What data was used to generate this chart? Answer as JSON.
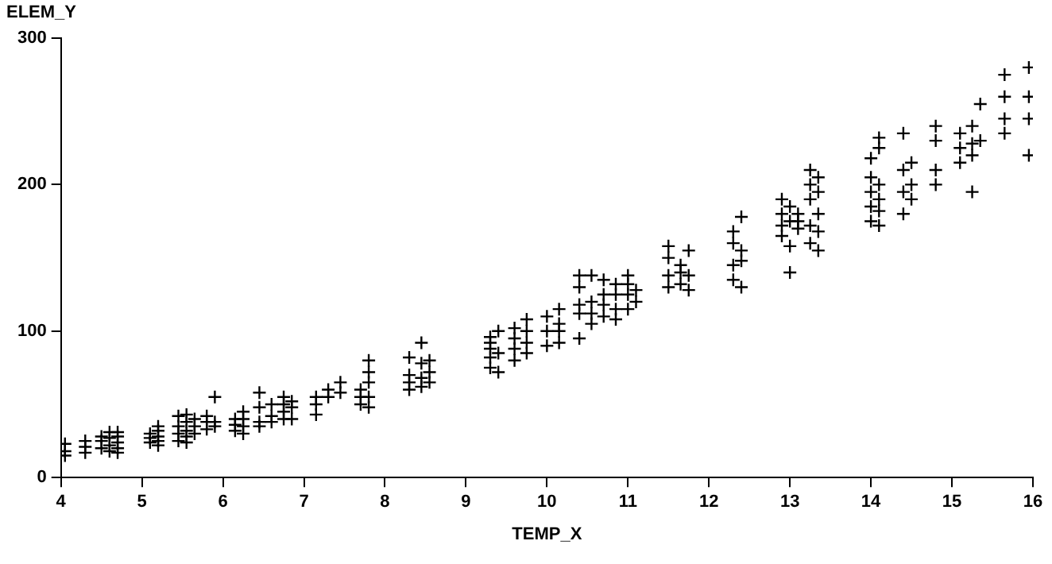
{
  "chart_data": {
    "type": "scatter",
    "xlabel": "TEMP_X",
    "ylabel": "ELEM_Y",
    "marker": "cross",
    "grid": false,
    "legend": false,
    "xlim": [
      4,
      16
    ],
    "xticks": [
      4,
      5,
      6,
      7,
      8,
      9,
      10,
      11,
      12,
      13,
      14,
      15,
      16
    ],
    "ylim": [
      0,
      300
    ],
    "yticks": [
      0,
      100,
      200,
      300
    ],
    "series": [
      {
        "color": "#000000",
        "x": [
          4.05,
          4.05,
          4.05,
          4.3,
          4.3,
          4.3,
          4.5,
          4.5,
          4.5,
          4.6,
          4.6,
          4.6,
          4.6,
          4.7,
          4.7,
          4.7,
          4.7,
          4.7,
          5.1,
          5.1,
          5.1,
          5.2,
          5.2,
          5.2,
          5.2,
          5.2,
          5.45,
          5.45,
          5.45,
          5.45,
          5.55,
          5.55,
          5.55,
          5.55,
          5.55,
          5.65,
          5.65,
          5.65,
          5.8,
          5.8,
          5.8,
          5.9,
          5.9,
          5.9,
          6.15,
          6.15,
          6.15,
          6.25,
          6.25,
          6.25,
          6.25,
          6.45,
          6.45,
          6.45,
          6.45,
          6.6,
          6.6,
          6.6,
          6.75,
          6.75,
          6.75,
          6.75,
          6.85,
          6.85,
          6.85,
          7.15,
          7.15,
          7.15,
          7.3,
          7.3,
          7.45,
          7.45,
          7.7,
          7.7,
          7.7,
          7.8,
          7.8,
          7.8,
          7.8,
          7.8,
          8.3,
          8.3,
          8.3,
          8.3,
          8.45,
          8.45,
          8.45,
          8.45,
          8.55,
          8.55,
          8.55,
          9.3,
          9.3,
          9.3,
          9.3,
          9.3,
          9.4,
          9.4,
          9.4,
          9.6,
          9.6,
          9.6,
          9.6,
          9.75,
          9.75,
          9.75,
          9.75,
          10.0,
          10.0,
          10.0,
          10.15,
          10.15,
          10.15,
          10.15,
          10.4,
          10.4,
          10.4,
          10.4,
          10.4,
          10.55,
          10.55,
          10.55,
          10.55,
          10.7,
          10.7,
          10.7,
          10.7,
          10.85,
          10.85,
          10.85,
          10.85,
          11.0,
          11.0,
          11.0,
          11.0,
          11.1,
          11.1,
          11.5,
          11.5,
          11.5,
          11.5,
          11.65,
          11.65,
          11.65,
          11.75,
          11.75,
          11.75,
          12.3,
          12.3,
          12.3,
          12.3,
          12.4,
          12.4,
          12.4,
          12.4,
          12.9,
          12.9,
          12.9,
          12.9,
          13.0,
          13.0,
          13.0,
          13.0,
          13.1,
          13.1,
          13.1,
          13.25,
          13.25,
          13.25,
          13.25,
          13.25,
          13.35,
          13.35,
          13.35,
          13.35,
          13.35,
          14.0,
          14.0,
          14.0,
          14.0,
          14.0,
          14.1,
          14.1,
          14.1,
          14.1,
          14.1,
          14.1,
          14.4,
          14.4,
          14.4,
          14.4,
          14.5,
          14.5,
          14.5,
          14.8,
          14.8,
          14.8,
          14.8,
          15.1,
          15.1,
          15.1,
          15.25,
          15.25,
          15.25,
          15.25,
          15.35,
          15.35,
          15.65,
          15.65,
          15.65,
          15.65,
          15.95,
          15.95,
          15.95,
          15.95
        ],
        "values": [
          15,
          18,
          23,
          17,
          21,
          25,
          20,
          25,
          28,
          18,
          22,
          27,
          31,
          17,
          20,
          24,
          28,
          31,
          24,
          27,
          30,
          22,
          25,
          28,
          32,
          35,
          25,
          30,
          35,
          42,
          24,
          28,
          32,
          38,
          43,
          30,
          35,
          40,
          33,
          38,
          42,
          35,
          38,
          55,
          32,
          36,
          40,
          30,
          35,
          40,
          45,
          35,
          38,
          48,
          58,
          38,
          42,
          50,
          40,
          45,
          50,
          55,
          40,
          48,
          52,
          43,
          50,
          55,
          55,
          60,
          58,
          65,
          50,
          55,
          60,
          48,
          55,
          65,
          72,
          80,
          60,
          65,
          70,
          82,
          62,
          68,
          78,
          92,
          65,
          72,
          80,
          75,
          82,
          88,
          92,
          96,
          72,
          85,
          100,
          80,
          88,
          95,
          102,
          85,
          92,
          100,
          108,
          90,
          100,
          110,
          92,
          100,
          105,
          115,
          95,
          112,
          118,
          130,
          138,
          105,
          112,
          120,
          138,
          110,
          118,
          125,
          135,
          108,
          115,
          125,
          132,
          115,
          125,
          132,
          138,
          120,
          128,
          130,
          138,
          150,
          158,
          132,
          140,
          145,
          128,
          138,
          155,
          135,
          145,
          160,
          168,
          130,
          148,
          155,
          178,
          165,
          172,
          180,
          190,
          140,
          158,
          175,
          185,
          170,
          175,
          180,
          160,
          172,
          190,
          200,
          210,
          155,
          168,
          180,
          195,
          205,
          175,
          185,
          195,
          205,
          218,
          172,
          182,
          190,
          200,
          225,
          232,
          180,
          195,
          210,
          235,
          190,
          200,
          215,
          200,
          210,
          230,
          240,
          215,
          225,
          235,
          195,
          220,
          228,
          240,
          230,
          255,
          235,
          245,
          260,
          275,
          220,
          245,
          260,
          280
        ]
      }
    ]
  }
}
